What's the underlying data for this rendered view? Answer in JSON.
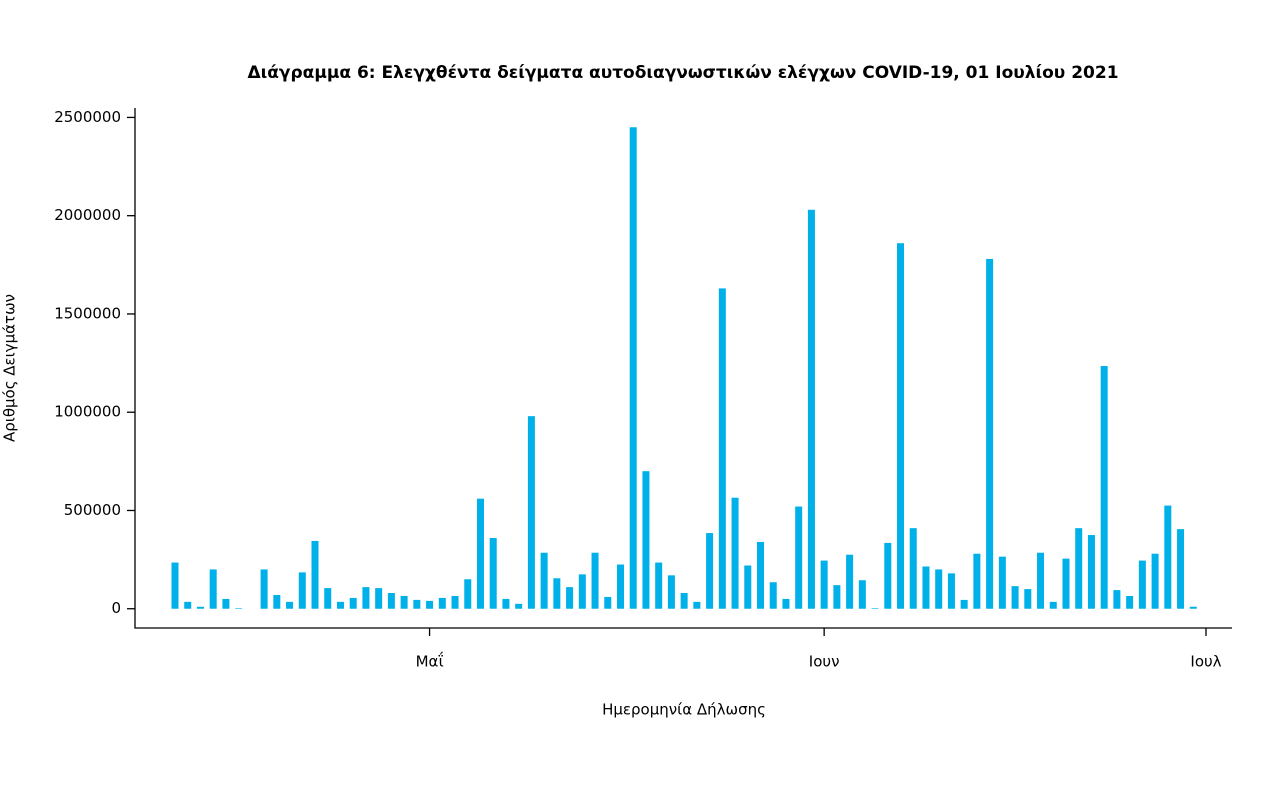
{
  "chart_data": {
    "type": "bar",
    "title": "Διάγραμμα 6: Ελεγχθέντα δείγματα αυτοδιαγνωστικών ελέγχων COVID-19, 01 Ιουλίου 2021",
    "xlabel": "Ημερομηνία Δήλωσης",
    "ylabel": "Αριθμός Δειγμάτων",
    "color": "#00b0e8",
    "categories": [
      null,
      null,
      null,
      null,
      null,
      null,
      null,
      null,
      null,
      null,
      null,
      null,
      null,
      null,
      null,
      null,
      null,
      null,
      null,
      null,
      "Μαΐ",
      null,
      null,
      null,
      null,
      null,
      null,
      null,
      null,
      null,
      null,
      null,
      null,
      null,
      null,
      null,
      null,
      null,
      null,
      null,
      null,
      null,
      null,
      null,
      null,
      null,
      null,
      null,
      null,
      null,
      null,
      "Ιουν",
      null,
      null,
      null,
      null,
      null,
      null,
      null,
      null,
      null,
      null,
      null,
      null,
      null,
      null,
      null,
      null,
      null,
      null,
      null,
      null,
      null,
      null,
      null,
      null,
      null,
      null,
      null,
      null,
      null,
      "Ιουλ"
    ],
    "values": [
      235000,
      35000,
      10000,
      200000,
      50000,
      3000,
      0,
      200000,
      70000,
      35000,
      185000,
      345000,
      105000,
      35000,
      55000,
      110000,
      105000,
      80000,
      65000,
      45000,
      40000,
      55000,
      65000,
      150000,
      560000,
      360000,
      50000,
      25000,
      980000,
      285000,
      155000,
      110000,
      175000,
      285000,
      60000,
      225000,
      2450000,
      700000,
      235000,
      170000,
      80000,
      35000,
      385000,
      1630000,
      565000,
      220000,
      340000,
      135000,
      50000,
      520000,
      2030000,
      245000,
      120000,
      275000,
      145000,
      3000,
      335000,
      1860000,
      410000,
      215000,
      200000,
      180000,
      45000,
      280000,
      1780000,
      265000,
      115000,
      100000,
      285000,
      35000,
      255000,
      410000,
      375000,
      1235000,
      95000,
      65000,
      245000,
      280000,
      525000,
      405000,
      10000,
      null
    ],
    "ylim": [
      -98000,
      2548000
    ],
    "yticks": [
      0,
      500000,
      1000000,
      1500000,
      2000000,
      2500000
    ]
  }
}
